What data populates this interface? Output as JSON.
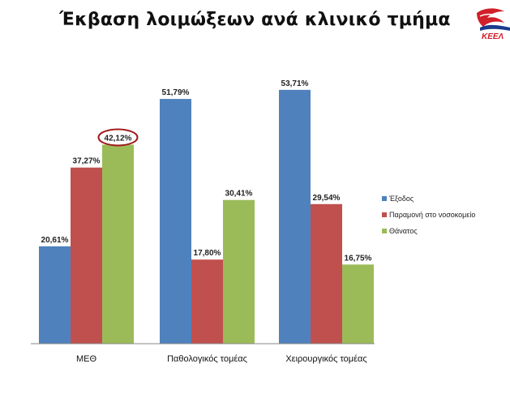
{
  "title": "Έκβαση λοιμώξεων ανά κλινικό τμήμα",
  "logo": {
    "text": "ΚΕΕΛ",
    "icon": "bird-logo-icon",
    "colors": {
      "primary": "#d0202a",
      "accent": "#1a3c8c"
    }
  },
  "chart_data": {
    "type": "bar",
    "categories": [
      "ΜΕΘ",
      "Παθολογικός τομέας",
      "Χειρουργικός τομέας"
    ],
    "series": [
      {
        "name": "Έξοδος",
        "color": "#4f81bd",
        "values": [
          20.61,
          51.79,
          53.71
        ],
        "labels": [
          "20,61%",
          "51,79%",
          "53,71%"
        ]
      },
      {
        "name": "Παραμονή στο νοσοκομείο",
        "color": "#c0504d",
        "values": [
          37.27,
          17.8,
          29.54
        ],
        "labels": [
          "37,27%",
          "17,80%",
          "29,54%"
        ]
      },
      {
        "name": "Θάνατος",
        "color": "#9bbb59",
        "values": [
          42.12,
          30.41,
          16.75
        ],
        "labels": [
          "42,12%",
          "30,41%",
          "16,75%"
        ]
      }
    ],
    "ylim": [
      0,
      60
    ],
    "grid": false,
    "legend": "right",
    "annotations": [
      {
        "type": "ellipse-highlight",
        "series": 2,
        "category": 0,
        "color": "#a01a1a"
      }
    ]
  }
}
